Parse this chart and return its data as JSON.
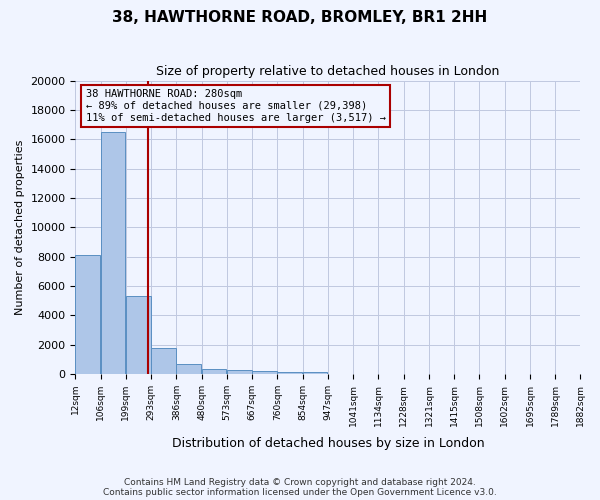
{
  "title": "38, HAWTHORNE ROAD, BROMLEY, BR1 2HH",
  "subtitle": "Size of property relative to detached houses in London",
  "xlabel": "Distribution of detached houses by size in London",
  "ylabel": "Number of detached properties",
  "property_size": 280,
  "annotation_line1": "38 HAWTHORNE ROAD: 280sqm",
  "annotation_line2": "← 89% of detached houses are smaller (29,398)",
  "annotation_line3": "11% of semi-detached houses are larger (3,517) →",
  "footer_line1": "Contains HM Land Registry data © Crown copyright and database right 2024.",
  "footer_line2": "Contains public sector information licensed under the Open Government Licence v3.0.",
  "bar_color": "#aec6e8",
  "bar_edge_color": "#5a8fc2",
  "vline_color": "#aa0000",
  "annotation_box_color": "#aa0000",
  "background_color": "#f0f4ff",
  "grid_color": "#c0c8e0",
  "bin_edges": [
    12,
    106,
    199,
    293,
    386,
    480,
    573,
    667,
    760,
    854,
    947,
    1041,
    1134,
    1228,
    1321,
    1415,
    1508,
    1602,
    1695,
    1789,
    1882
  ],
  "bin_labels": [
    "12sqm",
    "106sqm",
    "199sqm",
    "293sqm",
    "386sqm",
    "480sqm",
    "573sqm",
    "667sqm",
    "760sqm",
    "854sqm",
    "947sqm",
    "1041sqm",
    "1134sqm",
    "1228sqm",
    "1321sqm",
    "1415sqm",
    "1508sqm",
    "1602sqm",
    "1695sqm",
    "1789sqm",
    "1882sqm"
  ],
  "values": [
    8100,
    16500,
    5300,
    1800,
    700,
    350,
    270,
    200,
    170,
    130,
    0,
    0,
    0,
    0,
    0,
    0,
    0,
    0,
    0,
    0
  ],
  "ylim": [
    0,
    20000
  ],
  "yticks": [
    0,
    2000,
    4000,
    6000,
    8000,
    10000,
    12000,
    14000,
    16000,
    18000,
    20000
  ]
}
